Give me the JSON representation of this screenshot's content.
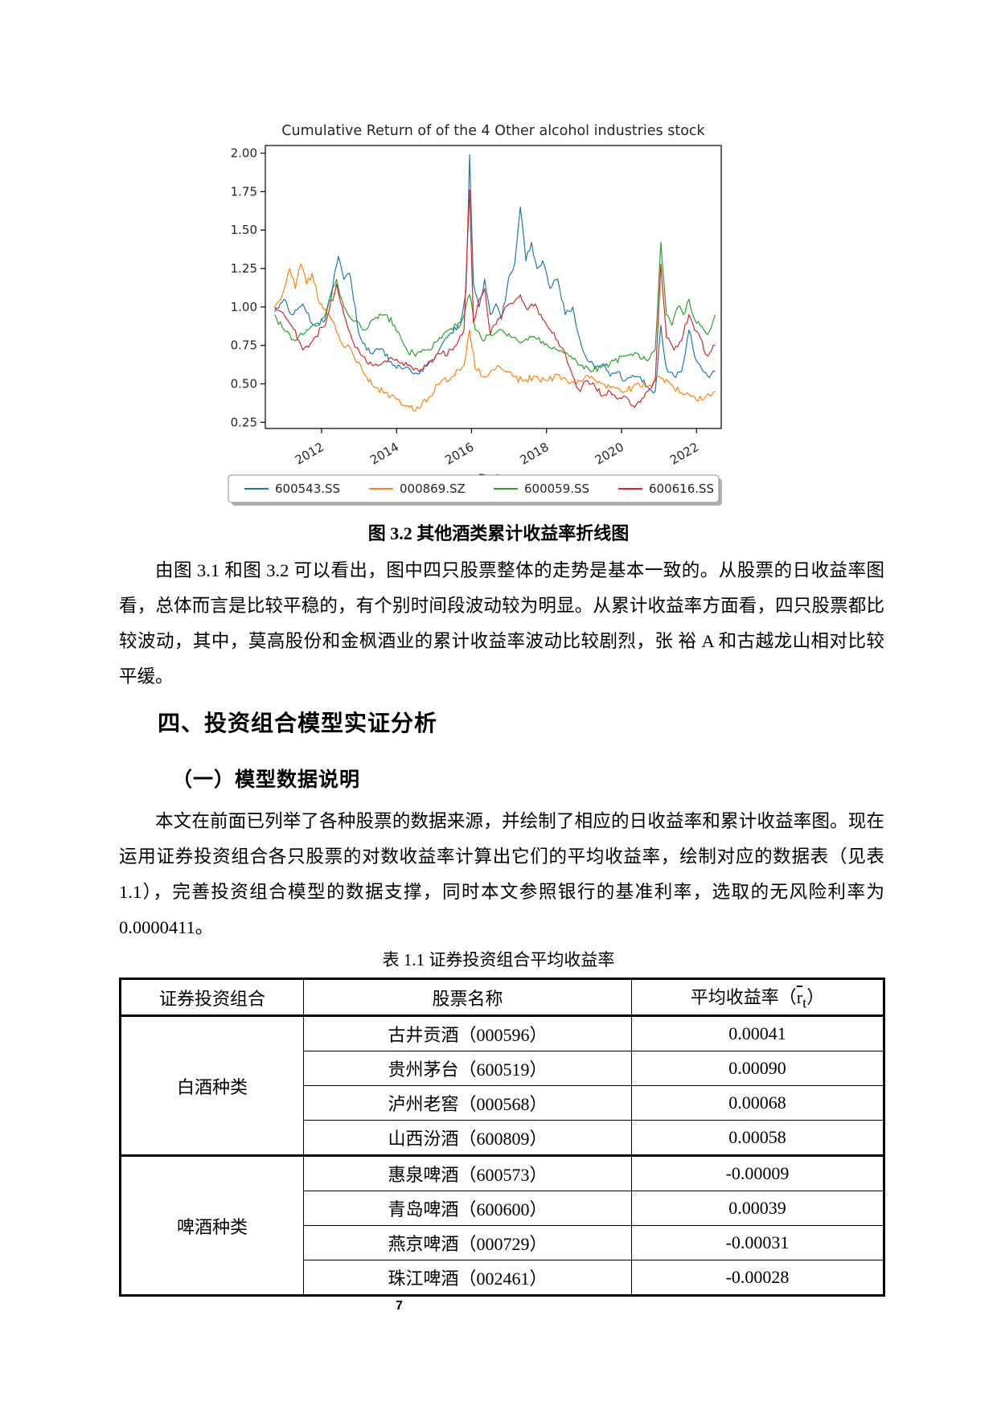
{
  "page": {
    "number": "7"
  },
  "figure": {
    "caption": "图 3.2 其他酒类累计收益率折线图"
  },
  "chart_data": {
    "type": "line",
    "title": "Cumulative Return of of the 4 Other alcohol industries stock",
    "xlabel": "Date",
    "ylabel": "",
    "yticks": [
      0.25,
      0.5,
      0.75,
      1.0,
      1.25,
      1.5,
      1.75,
      2.0
    ],
    "xticks": [
      2012,
      2014,
      2016,
      2018,
      2020,
      2022
    ],
    "xlim": [
      2010.5,
      2022.66
    ],
    "ylim": [
      0.21,
      2.05
    ],
    "grid": false,
    "legend_position": "below",
    "series": [
      {
        "name": "600543.SS",
        "color": "#1f77b4",
        "points": [
          [
            2010.75,
            0.97
          ],
          [
            2011.0,
            1.05
          ],
          [
            2011.2,
            0.95
          ],
          [
            2011.5,
            1.02
          ],
          [
            2011.8,
            0.88
          ],
          [
            2012.1,
            0.92
          ],
          [
            2012.45,
            1.33
          ],
          [
            2012.6,
            1.18
          ],
          [
            2012.75,
            1.22
          ],
          [
            2013.0,
            0.82
          ],
          [
            2013.3,
            0.7
          ],
          [
            2013.6,
            0.73
          ],
          [
            2013.9,
            0.62
          ],
          [
            2014.2,
            0.6
          ],
          [
            2014.5,
            0.57
          ],
          [
            2014.8,
            0.62
          ],
          [
            2015.1,
            0.7
          ],
          [
            2015.4,
            0.82
          ],
          [
            2015.7,
            0.9
          ],
          [
            2015.85,
            1.1
          ],
          [
            2015.95,
            1.99
          ],
          [
            2016.05,
            1.15
          ],
          [
            2016.2,
            1.0
          ],
          [
            2016.35,
            1.18
          ],
          [
            2016.5,
            0.95
          ],
          [
            2016.65,
            1.02
          ],
          [
            2016.8,
            0.92
          ],
          [
            2017.0,
            1.2
          ],
          [
            2017.15,
            1.28
          ],
          [
            2017.3,
            1.65
          ],
          [
            2017.45,
            1.3
          ],
          [
            2017.6,
            1.42
          ],
          [
            2017.75,
            1.25
          ],
          [
            2017.9,
            1.3
          ],
          [
            2018.1,
            1.12
          ],
          [
            2018.3,
            1.18
          ],
          [
            2018.5,
            0.95
          ],
          [
            2018.7,
            1.0
          ],
          [
            2018.9,
            0.78
          ],
          [
            2019.1,
            0.65
          ],
          [
            2019.3,
            0.6
          ],
          [
            2019.5,
            0.63
          ],
          [
            2019.7,
            0.55
          ],
          [
            2019.9,
            0.58
          ],
          [
            2020.1,
            0.52
          ],
          [
            2020.4,
            0.55
          ],
          [
            2020.7,
            0.48
          ],
          [
            2020.9,
            0.45
          ],
          [
            2021.05,
            0.88
          ],
          [
            2021.2,
            0.6
          ],
          [
            2021.4,
            0.55
          ],
          [
            2021.6,
            0.58
          ],
          [
            2021.8,
            0.85
          ],
          [
            2021.95,
            0.68
          ],
          [
            2022.1,
            0.62
          ],
          [
            2022.3,
            0.55
          ],
          [
            2022.5,
            0.58
          ]
        ]
      },
      {
        "name": "000869.SZ",
        "color": "#ff7f0e",
        "points": [
          [
            2010.75,
            1.0
          ],
          [
            2010.95,
            1.08
          ],
          [
            2011.15,
            1.25
          ],
          [
            2011.3,
            1.12
          ],
          [
            2011.45,
            1.28
          ],
          [
            2011.6,
            1.15
          ],
          [
            2011.75,
            1.22
          ],
          [
            2011.95,
            1.02
          ],
          [
            2012.2,
            0.95
          ],
          [
            2012.5,
            0.78
          ],
          [
            2012.8,
            0.72
          ],
          [
            2013.1,
            0.58
          ],
          [
            2013.4,
            0.48
          ],
          [
            2013.7,
            0.44
          ],
          [
            2014.0,
            0.4
          ],
          [
            2014.3,
            0.36
          ],
          [
            2014.6,
            0.34
          ],
          [
            2014.9,
            0.42
          ],
          [
            2015.2,
            0.52
          ],
          [
            2015.5,
            0.55
          ],
          [
            2015.8,
            0.62
          ],
          [
            2015.95,
            0.85
          ],
          [
            2016.1,
            0.6
          ],
          [
            2016.3,
            0.55
          ],
          [
            2016.5,
            0.58
          ],
          [
            2016.7,
            0.62
          ],
          [
            2016.9,
            0.58
          ],
          [
            2017.1,
            0.55
          ],
          [
            2017.4,
            0.52
          ],
          [
            2017.7,
            0.55
          ],
          [
            2018.0,
            0.52
          ],
          [
            2018.3,
            0.56
          ],
          [
            2018.6,
            0.5
          ],
          [
            2018.9,
            0.52
          ],
          [
            2019.2,
            0.55
          ],
          [
            2019.5,
            0.5
          ],
          [
            2019.8,
            0.48
          ],
          [
            2020.1,
            0.45
          ],
          [
            2020.4,
            0.5
          ],
          [
            2020.7,
            0.48
          ],
          [
            2021.0,
            0.55
          ],
          [
            2021.3,
            0.5
          ],
          [
            2021.6,
            0.44
          ],
          [
            2021.9,
            0.42
          ],
          [
            2022.2,
            0.4
          ],
          [
            2022.5,
            0.45
          ]
        ]
      },
      {
        "name": "600059.SS",
        "color": "#2ca02c",
        "points": [
          [
            2010.75,
            0.95
          ],
          [
            2011.0,
            0.85
          ],
          [
            2011.3,
            0.78
          ],
          [
            2011.6,
            0.85
          ],
          [
            2011.9,
            0.88
          ],
          [
            2012.1,
            0.95
          ],
          [
            2012.4,
            1.18
          ],
          [
            2012.6,
            1.0
          ],
          [
            2012.8,
            0.92
          ],
          [
            2013.1,
            0.85
          ],
          [
            2013.4,
            0.92
          ],
          [
            2013.7,
            0.95
          ],
          [
            2013.95,
            0.88
          ],
          [
            2014.2,
            0.75
          ],
          [
            2014.5,
            0.68
          ],
          [
            2014.8,
            0.72
          ],
          [
            2015.1,
            0.78
          ],
          [
            2015.4,
            0.85
          ],
          [
            2015.7,
            0.88
          ],
          [
            2015.95,
            1.08
          ],
          [
            2016.1,
            0.85
          ],
          [
            2016.3,
            0.78
          ],
          [
            2016.5,
            0.82
          ],
          [
            2016.8,
            0.85
          ],
          [
            2017.1,
            0.8
          ],
          [
            2017.4,
            0.78
          ],
          [
            2017.7,
            0.8
          ],
          [
            2018.0,
            0.76
          ],
          [
            2018.3,
            0.72
          ],
          [
            2018.6,
            0.68
          ],
          [
            2018.9,
            0.62
          ],
          [
            2019.2,
            0.58
          ],
          [
            2019.5,
            0.62
          ],
          [
            2019.8,
            0.65
          ],
          [
            2020.1,
            0.68
          ],
          [
            2020.4,
            0.7
          ],
          [
            2020.7,
            0.65
          ],
          [
            2020.9,
            0.72
          ],
          [
            2021.05,
            1.42
          ],
          [
            2021.2,
            0.95
          ],
          [
            2021.35,
            0.88
          ],
          [
            2021.5,
            1.0
          ],
          [
            2021.65,
            0.95
          ],
          [
            2021.8,
            1.05
          ],
          [
            2021.95,
            0.92
          ],
          [
            2022.1,
            0.88
          ],
          [
            2022.3,
            0.82
          ],
          [
            2022.5,
            0.95
          ]
        ]
      },
      {
        "name": "600616.SS",
        "color": "#d62728",
        "points": [
          [
            2010.75,
            1.0
          ],
          [
            2011.0,
            0.95
          ],
          [
            2011.2,
            0.88
          ],
          [
            2011.5,
            0.72
          ],
          [
            2011.8,
            0.8
          ],
          [
            2012.1,
            0.88
          ],
          [
            2012.4,
            1.15
          ],
          [
            2012.6,
            0.95
          ],
          [
            2012.8,
            0.8
          ],
          [
            2013.1,
            0.68
          ],
          [
            2013.4,
            0.62
          ],
          [
            2013.7,
            0.65
          ],
          [
            2014.0,
            0.66
          ],
          [
            2014.3,
            0.62
          ],
          [
            2014.6,
            0.58
          ],
          [
            2014.9,
            0.65
          ],
          [
            2015.2,
            0.7
          ],
          [
            2015.5,
            0.72
          ],
          [
            2015.8,
            0.85
          ],
          [
            2015.95,
            1.76
          ],
          [
            2016.05,
            0.9
          ],
          [
            2016.2,
            1.05
          ],
          [
            2016.35,
            1.12
          ],
          [
            2016.5,
            0.82
          ],
          [
            2016.7,
            0.92
          ],
          [
            2016.9,
            1.0
          ],
          [
            2017.1,
            1.02
          ],
          [
            2017.3,
            1.08
          ],
          [
            2017.5,
            0.98
          ],
          [
            2017.7,
            1.02
          ],
          [
            2017.9,
            0.92
          ],
          [
            2018.1,
            0.85
          ],
          [
            2018.3,
            0.78
          ],
          [
            2018.5,
            0.7
          ],
          [
            2018.7,
            0.55
          ],
          [
            2018.9,
            0.45
          ],
          [
            2019.1,
            0.52
          ],
          [
            2019.3,
            0.48
          ],
          [
            2019.5,
            0.42
          ],
          [
            2019.7,
            0.45
          ],
          [
            2019.9,
            0.4
          ],
          [
            2020.1,
            0.42
          ],
          [
            2020.3,
            0.36
          ],
          [
            2020.5,
            0.38
          ],
          [
            2020.7,
            0.45
          ],
          [
            2020.9,
            0.52
          ],
          [
            2021.05,
            1.28
          ],
          [
            2021.2,
            0.8
          ],
          [
            2021.4,
            0.72
          ],
          [
            2021.6,
            0.78
          ],
          [
            2021.8,
            0.95
          ],
          [
            2021.95,
            0.85
          ],
          [
            2022.1,
            0.8
          ],
          [
            2022.3,
            0.68
          ],
          [
            2022.5,
            0.75
          ]
        ]
      }
    ]
  },
  "headings": {
    "section": "四、投资组合模型实证分析",
    "subsection": "（一）模型数据说明"
  },
  "paragraphs": {
    "p1": "由图 3.1 和图 3.2 可以看出，图中四只股票整体的走势是基本一致的。从股票的日收益率图看，总体而言是比较平稳的，有个别时间段波动较为明显。从累计收益率方面看，四只股票都比较波动，其中，莫高股份和金枫酒业的累计收益率波动比较剧烈，张 裕 A 和古越龙山相对比较平缓。",
    "p2": "本文在前面已列举了各种股票的数据来源，并绘制了相应的日收益率和累计收益率图。现在运用证券投资组合各只股票的对数收益率计算出它们的平均收益率，绘制对应的数据表（见表 1.1），完善投资组合模型的数据支撑，同时本文参照银行的基准利率，选取的无风险利率为 0.0000411。"
  },
  "table": {
    "caption": "表 1.1 证券投资组合平均收益率",
    "headers": [
      "证券投资组合",
      "股票名称"
    ],
    "header_return": {
      "prefix": "平均收益率（",
      "base": "r",
      "sub": "t",
      "suffix": "）"
    },
    "groups": [
      {
        "category": "白酒种类",
        "rows": [
          [
            "古井贡酒（000596）",
            "0.00041"
          ],
          [
            "贵州茅台（600519）",
            "0.00090"
          ],
          [
            "泸州老窖（000568）",
            "0.00068"
          ],
          [
            "山西汾酒（600809）",
            "0.00058"
          ]
        ]
      },
      {
        "category": "啤酒种类",
        "rows": [
          [
            "惠泉啤酒（600573）",
            "-0.00009"
          ],
          [
            "青岛啤酒（600600）",
            "0.00039"
          ],
          [
            "燕京啤酒（000729）",
            "-0.00031"
          ],
          [
            "珠江啤酒（002461）",
            "-0.00028"
          ]
        ]
      }
    ]
  }
}
